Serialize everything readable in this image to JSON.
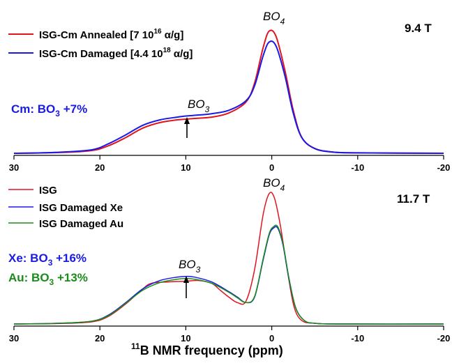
{
  "chart_data": [
    {
      "type": "line",
      "xlim": [
        30,
        -20
      ],
      "x_ticks": [
        "30",
        "20",
        "10",
        "0",
        "-10",
        "-20"
      ],
      "field_label": "9.4 T",
      "peak_labels": [
        {
          "base": "BO",
          "sub": "4",
          "x": 0.2
        },
        {
          "base": "BO",
          "sub": "3",
          "x": 10
        }
      ],
      "annotation": {
        "pre": "Cm: BO",
        "sub": "3",
        "post": " +7%",
        "color": "#1a1ae6"
      },
      "arrow_x": 10,
      "series": [
        {
          "name_pre": "ISG-Cm Annealed [7 10",
          "name_sup": "16",
          "name_post": " α/g]",
          "color": "#e0141e",
          "points": [
            [
              30,
              0.005
            ],
            [
              25,
              0.01
            ],
            [
              21,
              0.025
            ],
            [
              19,
              0.06
            ],
            [
              17,
              0.12
            ],
            [
              15,
              0.19
            ],
            [
              13,
              0.23
            ],
            [
              11,
              0.25
            ],
            [
              10,
              0.255
            ],
            [
              9,
              0.26
            ],
            [
              7,
              0.27
            ],
            [
              5,
              0.3
            ],
            [
              3,
              0.38
            ],
            [
              2,
              0.52
            ],
            [
              1,
              0.78
            ],
            [
              0.3,
              0.9
            ],
            [
              -0.5,
              0.86
            ],
            [
              -1.5,
              0.62
            ],
            [
              -2.5,
              0.32
            ],
            [
              -3.5,
              0.12
            ],
            [
              -5,
              0.04
            ],
            [
              -7,
              0.015
            ],
            [
              -10,
              0.008
            ],
            [
              -20,
              0.005
            ]
          ]
        },
        {
          "name_pre": "ISG-Cm Damaged [4.4 10",
          "name_sup": "18",
          "name_post": " α/g]",
          "color": "#1a1ae6",
          "points": [
            [
              30,
              0.005
            ],
            [
              25,
              0.012
            ],
            [
              21,
              0.03
            ],
            [
              19,
              0.075
            ],
            [
              17,
              0.14
            ],
            [
              15,
              0.21
            ],
            [
              13,
              0.25
            ],
            [
              11,
              0.27
            ],
            [
              10,
              0.278
            ],
            [
              9,
              0.283
            ],
            [
              7,
              0.295
            ],
            [
              5,
              0.32
            ],
            [
              3,
              0.39
            ],
            [
              2,
              0.5
            ],
            [
              1,
              0.72
            ],
            [
              0.3,
              0.82
            ],
            [
              -0.5,
              0.79
            ],
            [
              -1.5,
              0.58
            ],
            [
              -2.5,
              0.3
            ],
            [
              -3.5,
              0.12
            ],
            [
              -5,
              0.04
            ],
            [
              -7,
              0.015
            ],
            [
              -10,
              0.008
            ],
            [
              -20,
              0.005
            ]
          ]
        }
      ]
    },
    {
      "type": "line",
      "xlim": [
        30,
        -20
      ],
      "x_ticks": [
        "30",
        "20",
        "10",
        "0",
        "-10",
        "-20"
      ],
      "xlabel_pre": "11",
      "xlabel_main": "B NMR frequency (ppm)",
      "field_label": "11.7 T",
      "peak_labels": [
        {
          "base": "BO",
          "sub": "4",
          "x": 0.2
        },
        {
          "base": "BO",
          "sub": "3",
          "x": 10
        }
      ],
      "annotations": [
        {
          "pre": "Xe: BO",
          "sub": "3",
          "post": " +16%",
          "color": "#1a1ae6"
        },
        {
          "pre": "Au: BO",
          "sub": "3",
          "post": " +13%",
          "color": "#1a8c1a"
        }
      ],
      "arrow_x": 10,
      "series": [
        {
          "name": "ISG",
          "color": "#e0141e",
          "points": [
            [
              30,
              0.005
            ],
            [
              25,
              0.008
            ],
            [
              21,
              0.02
            ],
            [
              19,
              0.06
            ],
            [
              17,
              0.15
            ],
            [
              15,
              0.26
            ],
            [
              14,
              0.3
            ],
            [
              12,
              0.31
            ],
            [
              10,
              0.315
            ],
            [
              8.5,
              0.32
            ],
            [
              7,
              0.3
            ],
            [
              6,
              0.25
            ],
            [
              5,
              0.2
            ],
            [
              4,
              0.16
            ],
            [
              3,
              0.17
            ],
            [
              2,
              0.4
            ],
            [
              1,
              0.8
            ],
            [
              0.3,
              0.95
            ],
            [
              -0.3,
              0.92
            ],
            [
              -1,
              0.72
            ],
            [
              -1.8,
              0.4
            ],
            [
              -2.6,
              0.13
            ],
            [
              -3.5,
              0.03
            ],
            [
              -5,
              0.01
            ],
            [
              -8,
              0.005
            ],
            [
              -20,
              0.005
            ]
          ]
        },
        {
          "name": "ISG Damaged Xe",
          "color": "#1a1ae6",
          "points": [
            [
              30,
              0.005
            ],
            [
              25,
              0.01
            ],
            [
              21,
              0.025
            ],
            [
              19,
              0.07
            ],
            [
              17,
              0.16
            ],
            [
              15,
              0.26
            ],
            [
              13,
              0.32
            ],
            [
              11,
              0.345
            ],
            [
              10,
              0.35
            ],
            [
              9,
              0.345
            ],
            [
              7,
              0.31
            ],
            [
              5,
              0.24
            ],
            [
              4,
              0.2
            ],
            [
              3,
              0.16
            ],
            [
              2,
              0.2
            ],
            [
              1,
              0.47
            ],
            [
              0.3,
              0.65
            ],
            [
              -0.2,
              0.7
            ],
            [
              -0.7,
              0.7
            ],
            [
              -1.3,
              0.58
            ],
            [
              -2,
              0.33
            ],
            [
              -2.8,
              0.12
            ],
            [
              -3.8,
              0.03
            ],
            [
              -5,
              0.01
            ],
            [
              -8,
              0.005
            ],
            [
              -20,
              0.005
            ]
          ]
        },
        {
          "name": "ISG Damaged Au",
          "color": "#1a8c1a",
          "points": [
            [
              30,
              0.005
            ],
            [
              25,
              0.01
            ],
            [
              21,
              0.025
            ],
            [
              19,
              0.065
            ],
            [
              17,
              0.155
            ],
            [
              15,
              0.25
            ],
            [
              13,
              0.305
            ],
            [
              11,
              0.33
            ],
            [
              10,
              0.335
            ],
            [
              9,
              0.33
            ],
            [
              7,
              0.3
            ],
            [
              5,
              0.235
            ],
            [
              4,
              0.195
            ],
            [
              3,
              0.16
            ],
            [
              2,
              0.205
            ],
            [
              1,
              0.48
            ],
            [
              0.3,
              0.66
            ],
            [
              -0.2,
              0.71
            ],
            [
              -0.7,
              0.71
            ],
            [
              -1.3,
              0.59
            ],
            [
              -2,
              0.34
            ],
            [
              -2.8,
              0.12
            ],
            [
              -3.8,
              0.03
            ],
            [
              -5,
              0.01
            ],
            [
              -8,
              0.005
            ],
            [
              -20,
              0.005
            ]
          ]
        }
      ]
    }
  ]
}
